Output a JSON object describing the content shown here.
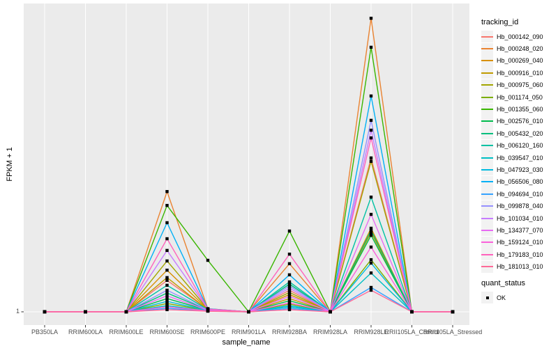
{
  "figure": {
    "y_axis_title": "FPKM + 1",
    "x_axis_title": "sample_name",
    "y_tick_label": "1",
    "legend_color_title": "tracking_id",
    "legend_shape_title": "quant_status",
    "legend_shape_entry": "OK"
  },
  "chart_data": {
    "type": "line",
    "xlabel": "sample_name",
    "ylabel": "FPKM + 1",
    "y_axis_visible_ticks": [
      "1"
    ],
    "legend_position": "right",
    "legend_color_title": "tracking_id",
    "legend_shape_title": "quant_status",
    "legend_shape_entries": [
      "OK"
    ],
    "point_style": "small black square at every sample point",
    "panel_style": "gray panel, white vertical gridline per category, white horizontal line at y=1",
    "categories": [
      "PB350LA",
      "RRIM600LA",
      "RRIM600LE",
      "RRIM600SE",
      "RRIM600PE",
      "RRIM901LA",
      "RRIM928BA",
      "RRIM928LA",
      "RRIM928LE",
      "RRII105LA_Control",
      "RRII105LA_Stressed"
    ],
    "h_note": "h = height of each point above the y=1 baseline as a fraction of panel height (only the tick '1' is labeled on the y axis); 0 = on the baseline",
    "series": [
      {
        "name": "Hb_000142_090",
        "color": "#F8766D",
        "h": [
          0,
          0,
          0,
          0.102,
          0.008,
          0,
          0.07,
          0,
          0.499,
          0,
          0
        ]
      },
      {
        "name": "Hb_000248_020",
        "color": "#EA8331",
        "h": [
          0,
          0,
          0,
          0.39,
          0.01,
          0,
          0.156,
          0,
          0.952,
          0,
          0
        ]
      },
      {
        "name": "Hb_000269_040",
        "color": "#D89000",
        "h": [
          0,
          0,
          0,
          0.135,
          0.008,
          0,
          0.056,
          0,
          0.271,
          0,
          0
        ]
      },
      {
        "name": "Hb_000916_010",
        "color": "#C09B00",
        "h": [
          0,
          0,
          0,
          0.111,
          0.007,
          0,
          0.043,
          0,
          0.257,
          0,
          0
        ]
      },
      {
        "name": "Hb_000975_060",
        "color": "#A3A500",
        "h": [
          0,
          0,
          0,
          0.165,
          0.009,
          0,
          0.063,
          0,
          0.488,
          0,
          0
        ]
      },
      {
        "name": "Hb_001174_050",
        "color": "#7CAE00",
        "h": [
          0,
          0,
          0,
          0.027,
          0.004,
          0,
          0.025,
          0,
          0.169,
          0,
          0
        ]
      },
      {
        "name": "Hb_001355_060",
        "color": "#39B600",
        "h": [
          0,
          0,
          0,
          0.345,
          0.167,
          0,
          0.262,
          0,
          0.858,
          0,
          0
        ]
      },
      {
        "name": "Hb_002576_010",
        "color": "#00BB4E",
        "h": [
          0,
          0,
          0,
          0.043,
          0.005,
          0,
          0.036,
          0,
          0.248,
          0,
          0
        ]
      },
      {
        "name": "Hb_005432_020",
        "color": "#00BF7D",
        "h": [
          0,
          0,
          0,
          0.061,
          0.006,
          0,
          0.09,
          0,
          0.264,
          0,
          0
        ]
      },
      {
        "name": "Hb_006120_160",
        "color": "#00C1A3",
        "h": [
          0,
          0,
          0,
          0.086,
          0.007,
          0,
          0.097,
          0,
          0.372,
          0,
          0
        ]
      },
      {
        "name": "Hb_039547_010",
        "color": "#00BFC4",
        "h": [
          0,
          0,
          0,
          0.02,
          0.003,
          0,
          0.016,
          0,
          0.126,
          0,
          0
        ]
      },
      {
        "name": "Hb_047923_030",
        "color": "#00BAE0",
        "h": [
          0,
          0,
          0,
          0.034,
          0.004,
          0,
          0.02,
          0,
          0.158,
          0,
          0
        ]
      },
      {
        "name": "Hb_056506_080",
        "color": "#00B0F6",
        "h": [
          0,
          0,
          0,
          0.289,
          0.01,
          0,
          0.12,
          0,
          0.7,
          0,
          0
        ]
      },
      {
        "name": "Hb_094694_010",
        "color": "#35A2FF",
        "h": [
          0,
          0,
          0,
          0.011,
          0.003,
          0,
          0.011,
          0,
          0.079,
          0,
          0
        ]
      },
      {
        "name": "Hb_099878_040",
        "color": "#9590FF",
        "h": [
          0,
          0,
          0,
          0.07,
          0.006,
          0,
          0.084,
          0,
          0.621,
          0,
          0
        ]
      },
      {
        "name": "Hb_101034_010",
        "color": "#C77CFF",
        "h": [
          0,
          0,
          0,
          0.199,
          0.009,
          0,
          0.077,
          0,
          0.589,
          0,
          0
        ]
      },
      {
        "name": "Hb_134377_070",
        "color": "#E76BF3",
        "h": [
          0,
          0,
          0,
          0.052,
          0.005,
          0,
          0.05,
          0,
          0.316,
          0,
          0
        ]
      },
      {
        "name": "Hb_159124_010",
        "color": "#FA62DB",
        "h": [
          0,
          0,
          0,
          0.016,
          0.003,
          0,
          0.029,
          0,
          0.21,
          0,
          0
        ]
      },
      {
        "name": "Hb_179183_010",
        "color": "#FF62BC",
        "h": [
          0,
          0,
          0,
          0.237,
          0.009,
          0,
          0.187,
          0,
          0.564,
          0,
          0
        ]
      },
      {
        "name": "Hb_181013_010",
        "color": "#FF6A98",
        "h": [
          0,
          0,
          0,
          0.007,
          0.002,
          0,
          0.007,
          0,
          0.07,
          0,
          0
        ]
      }
    ]
  }
}
